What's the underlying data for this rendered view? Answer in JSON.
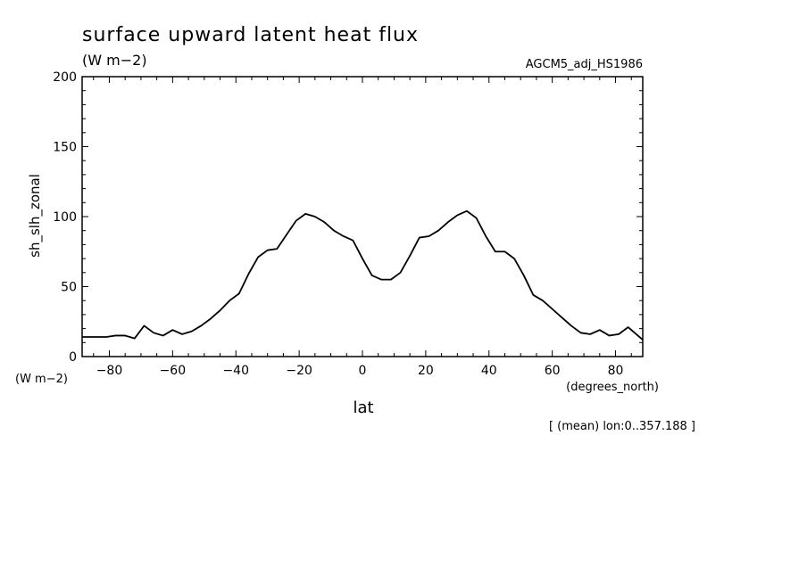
{
  "header": {
    "title": "surface upward latent heat flux",
    "units": "(W m−2)",
    "experiment": "AGCM5_adj_HS1986"
  },
  "axes": {
    "y_units_corner": "(W m−2)",
    "x_units_corner": "(degrees_north)"
  },
  "footer": {
    "note": "[ (mean) lon:0..357.188 ]"
  },
  "chart_data": {
    "type": "line",
    "title": "surface upward latent heat flux",
    "xlabel": "lat",
    "ylabel": "sh_slh_zonal",
    "xlim": [
      -88.6,
      88.6
    ],
    "ylim": [
      0,
      200
    ],
    "x_ticks": [
      -80,
      -60,
      -40,
      -20,
      0,
      20,
      40,
      60,
      80
    ],
    "x_tick_labels": [
      "−80",
      "−60",
      "−40",
      "−20",
      "0",
      "20",
      "40",
      "60",
      "80"
    ],
    "y_ticks": [
      0,
      50,
      100,
      150,
      200
    ],
    "y_tick_labels": [
      "0",
      "50",
      "100",
      "150",
      "200"
    ],
    "x_minor_step": 5,
    "y_minor_step": 10,
    "grid": false,
    "series": [
      {
        "color": "#000000",
        "x": [
          -88.6,
          -84,
          -81,
          -78,
          -75,
          -72,
          -69,
          -66,
          -63,
          -60,
          -57,
          -54,
          -51,
          -48,
          -45,
          -42,
          -39,
          -36,
          -33,
          -30,
          -27,
          -24,
          -21,
          -18,
          -15,
          -12,
          -9,
          -6,
          -3,
          0,
          3,
          6,
          9,
          12,
          15,
          18,
          21,
          24,
          27,
          30,
          33,
          36,
          39,
          42,
          45,
          48,
          51,
          54,
          57,
          60,
          63,
          66,
          69,
          72,
          75,
          78,
          81,
          84,
          88.6
        ],
        "y": [
          14,
          14,
          14,
          15,
          15,
          13,
          22,
          17,
          15,
          19,
          16,
          18,
          22,
          27,
          33,
          40,
          45,
          59,
          71,
          76,
          77,
          87,
          97,
          102,
          100,
          96,
          90,
          86,
          83,
          70,
          58,
          55,
          55,
          60,
          72,
          85,
          86,
          90,
          96,
          101,
          104,
          99,
          86,
          75,
          75,
          70,
          58,
          44,
          40,
          34,
          28,
          22,
          17,
          16,
          19,
          15,
          16,
          21,
          12
        ]
      }
    ]
  }
}
